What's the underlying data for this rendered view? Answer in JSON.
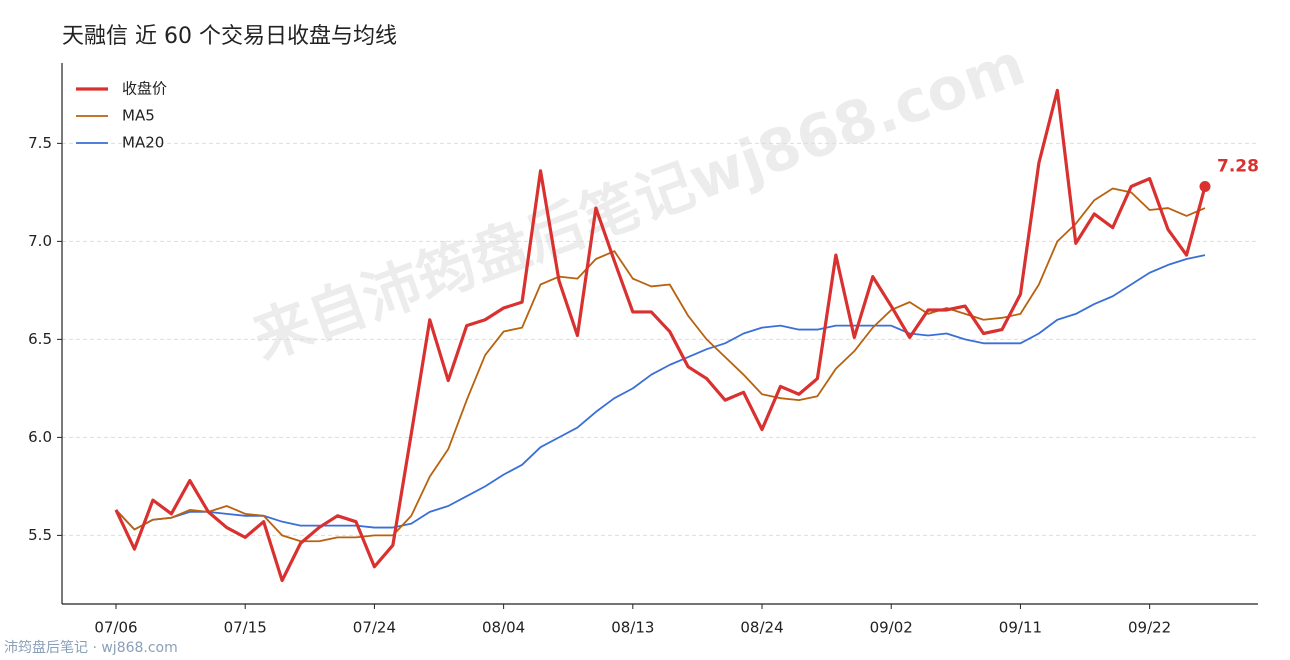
{
  "chart_data": {
    "type": "line",
    "title": "天融信 近 60 个交易日收盘与均线",
    "watermark": "来自沛筠盘后笔记wj868.com",
    "source": "沛筠盘后笔记 · wj868.com",
    "categories": [
      "07/06",
      null,
      null,
      null,
      null,
      null,
      null,
      "07/15",
      null,
      null,
      null,
      null,
      null,
      null,
      "07/24",
      null,
      null,
      null,
      null,
      null,
      null,
      "08/04",
      null,
      null,
      null,
      null,
      null,
      null,
      "08/13",
      null,
      null,
      null,
      null,
      null,
      null,
      "08/24",
      null,
      null,
      null,
      null,
      null,
      null,
      "09/02",
      null,
      null,
      null,
      null,
      null,
      null,
      "09/11",
      null,
      null,
      null,
      null,
      null,
      null,
      "09/22",
      null,
      null,
      null
    ],
    "series": [
      {
        "name": "收盘价",
        "color": "#d93030",
        "values": [
          5.63,
          5.43,
          5.68,
          5.61,
          5.78,
          5.62,
          5.54,
          5.49,
          5.57,
          5.27,
          5.46,
          5.54,
          5.6,
          5.57,
          5.34,
          5.45,
          6.02,
          6.6,
          6.29,
          6.57,
          6.6,
          6.66,
          6.69,
          7.36,
          6.8,
          6.52,
          7.17,
          6.9,
          6.64,
          6.64,
          6.54,
          6.36,
          6.3,
          6.19,
          6.23,
          6.04,
          6.26,
          6.22,
          6.3,
          6.93,
          6.51,
          6.82,
          6.67,
          6.51,
          6.65,
          6.65,
          6.67,
          6.53,
          6.55,
          6.73,
          7.4,
          7.77,
          6.99,
          7.14,
          7.07,
          7.28,
          7.32,
          7.06,
          6.93,
          7.28
        ]
      },
      {
        "name": "MA5",
        "color": "#b8620e",
        "values": [
          5.63,
          5.53,
          5.58,
          5.59,
          5.63,
          5.62,
          5.65,
          5.61,
          5.6,
          5.5,
          5.47,
          5.47,
          5.49,
          5.49,
          5.5,
          5.5,
          5.6,
          5.8,
          5.94,
          6.19,
          6.42,
          6.54,
          6.56,
          6.78,
          6.82,
          6.81,
          6.91,
          6.95,
          6.81,
          6.77,
          6.78,
          6.62,
          6.5,
          6.41,
          6.32,
          6.22,
          6.2,
          6.19,
          6.21,
          6.35,
          6.44,
          6.56,
          6.65,
          6.69,
          6.63,
          6.66,
          6.63,
          6.6,
          6.61,
          6.63,
          6.78,
          7.0,
          7.09,
          7.21,
          7.27,
          7.25,
          7.16,
          7.17,
          7.13,
          7.17
        ]
      },
      {
        "name": "MA20",
        "color": "#3a6fd8",
        "values": [
          5.63,
          5.53,
          5.58,
          5.59,
          5.62,
          5.62,
          5.61,
          5.6,
          5.6,
          5.57,
          5.55,
          5.55,
          5.55,
          5.55,
          5.54,
          5.54,
          5.56,
          5.62,
          5.65,
          5.7,
          5.75,
          5.81,
          5.86,
          5.95,
          6.0,
          6.05,
          6.13,
          6.2,
          6.25,
          6.32,
          6.37,
          6.41,
          6.45,
          6.48,
          6.53,
          6.56,
          6.57,
          6.55,
          6.55,
          6.57,
          6.57,
          6.57,
          6.57,
          6.53,
          6.52,
          6.53,
          6.5,
          6.48,
          6.48,
          6.48,
          6.53,
          6.6,
          6.63,
          6.68,
          6.72,
          6.78,
          6.84,
          6.88,
          6.91,
          6.93
        ]
      }
    ],
    "ylim": [
      5.15,
      7.91
    ],
    "yticks": [
      5.5,
      {
        "value": 6,
        "label": "6.0"
      },
      6.5,
      {
        "value": 7,
        "label": "7.0"
      },
      7.5
    ],
    "grid": true,
    "legend": "upper left"
  }
}
